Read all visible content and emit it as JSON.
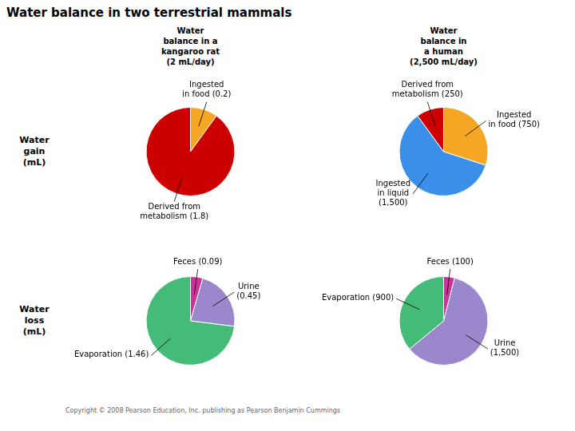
{
  "title": "Water balance in two terrestrial mammals",
  "column_labels": [
    "Water\nbalance in a\nkangaroo rat\n(2 mL/day)",
    "Water\nbalance in\na human\n(2,500 mL/day)"
  ],
  "row_labels": [
    "Water\ngain\n(mL)",
    "Water\nloss\n(mL)"
  ],
  "annotations": [
    "Copyright © 2008 Pearson Education, Inc. publishing as Pearson Benjamin Cummings"
  ],
  "chart_data": [
    {
      "type": "pie",
      "categories": [
        "Ingested\nin food (0.2)",
        "Derived from\nmetabolism (1.8)"
      ],
      "values": [
        0.2,
        1.8
      ],
      "colors": [
        "#f5a623",
        "#cc0000"
      ]
    },
    {
      "type": "pie",
      "categories": [
        "Ingested\nin food (750)",
        "Ingested\nin liquid\n(1,500)",
        "Derived from\nmetabolism (250)"
      ],
      "values": [
        750,
        1500,
        250
      ],
      "colors": [
        "#f5a623",
        "#3a8fe8",
        "#cc0000"
      ]
    },
    {
      "type": "pie",
      "categories": [
        "Feces (0.09)",
        "Urine\n(0.45)",
        "Evaporation (1.46)"
      ],
      "values": [
        0.09,
        0.45,
        1.46
      ],
      "colors": [
        "#cc3399",
        "#9b88cc",
        "#44bb77"
      ]
    },
    {
      "type": "pie",
      "categories": [
        "Feces (100)",
        "Urine\n(1,500)",
        "Evaporation (900)"
      ],
      "values": [
        100,
        1500,
        900
      ],
      "colors": [
        "#cc3399",
        "#9b88cc",
        "#44bb77"
      ]
    }
  ]
}
